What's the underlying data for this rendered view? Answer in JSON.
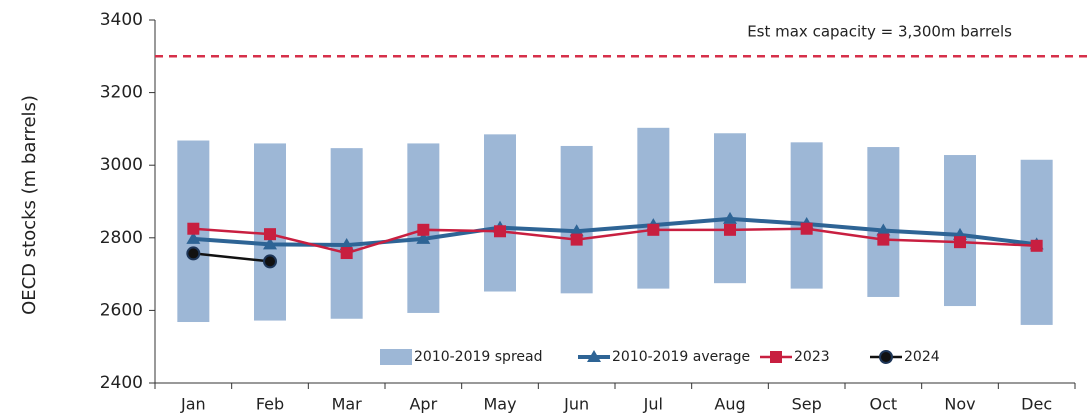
{
  "chart_data": {
    "type": "floating_bar_line",
    "y_label": "OECD stocks (m barrels)",
    "categories": [
      "Jan",
      "Feb",
      "Mar",
      "Apr",
      "May",
      "Jun",
      "Jul",
      "Aug",
      "Sep",
      "Oct",
      "Nov",
      "Dec"
    ],
    "series": [
      {
        "name": "2010-2019 spread",
        "color": "#9db7d6",
        "kind": "range",
        "low": [
          2568,
          2572,
          2577,
          2593,
          2652,
          2647,
          2660,
          2675,
          2660,
          2637,
          2612,
          2560
        ],
        "high": [
          3068,
          3060,
          3047,
          3060,
          3085,
          3053,
          3103,
          3088,
          3063,
          3050,
          3028,
          3015
        ]
      },
      {
        "name": "2010-2019 average",
        "color": "#2e6495",
        "kind": "line",
        "marker": "triangle",
        "values": [
          2797,
          2782,
          2780,
          2797,
          2828,
          2818,
          2835,
          2852,
          2838,
          2820,
          2808,
          2782
        ]
      },
      {
        "name": "2023",
        "color": "#c81f40",
        "kind": "line",
        "marker": "square",
        "values": [
          2825,
          2810,
          2758,
          2822,
          2818,
          2795,
          2822,
          2822,
          2825,
          2795,
          2788,
          2778
        ]
      },
      {
        "name": "2024",
        "color": "#111111",
        "kind": "line",
        "marker": "circle",
        "values": [
          2757,
          2735,
          null,
          null,
          null,
          null,
          null,
          null,
          null,
          null,
          null,
          null
        ]
      }
    ],
    "reference_line": {
      "value": 3300,
      "color": "#d6304a",
      "label": "Est max capacity = 3,300m barrels"
    },
    "ylim": [
      2400,
      3400
    ],
    "yticks": [
      2400,
      2600,
      2800,
      3000,
      3200,
      3400
    ],
    "grid": false
  }
}
